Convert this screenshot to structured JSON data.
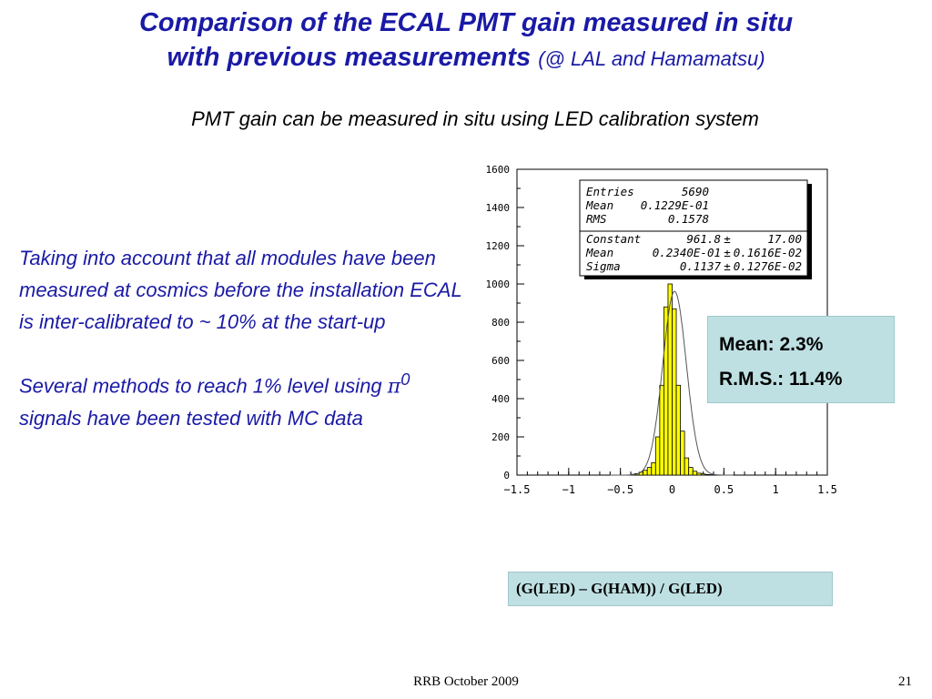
{
  "slide": {
    "title_line1": "Comparison of the ECAL PMT gain measured in situ",
    "title_line2": "with previous measurements",
    "title_suffix": "(@  LAL and Hamamatsu)",
    "subtitle": "PMT gain can be measured in situ using LED calibration system",
    "note1": "Taking into account that all modules have been measured at cosmics before the installation ECAL is inter-calibrated to ~ 10% at the start-up",
    "note2_before": "Several methods to reach 1% level using ",
    "note2_pi": "π",
    "note2_sup": "0",
    "note2_after": " signals have been tested with MC data",
    "callout_mean": "Mean: 2.3%",
    "callout_rms": "R.M.S.: 11.4%",
    "x_caption": "(G(LED) – G(HAM)) / G(LED)",
    "footer": "RRB October 2009",
    "page_number": "21"
  },
  "stats_box": [
    {
      "label": "Entries",
      "value": "5690"
    },
    {
      "label": "Mean",
      "value": "0.1229E-01"
    },
    {
      "label": "RMS",
      "value": "0.1578"
    },
    {
      "label": "Constant",
      "value": "961.8",
      "error": "17.00"
    },
    {
      "label": "Mean",
      "value": "0.2340E-01",
      "error": "0.1616E-02"
    },
    {
      "label": "Sigma",
      "value": "0.1137",
      "error": "0.1276E-02"
    }
  ],
  "colors": {
    "title_blue": "#1a1aa6",
    "histogram_fill": "#ffff00",
    "callout_bg": "#bfe0e3"
  },
  "chart_data": {
    "type": "bar",
    "xlim": [
      -1.5,
      1.5
    ],
    "ylim": [
      0,
      1600
    ],
    "xticks": [
      "-1.5",
      "-1",
      "-0.5",
      "0",
      "0.5",
      "1",
      "1.5"
    ],
    "yticks": [
      "0",
      "200",
      "400",
      "600",
      "800",
      "1000",
      "1200",
      "1400",
      "1600"
    ],
    "bin_width": 0.04,
    "bin_centers": [
      -0.38,
      -0.34,
      -0.3,
      -0.26,
      -0.22,
      -0.18,
      -0.14,
      -0.1,
      -0.06,
      -0.02,
      0.02,
      0.06,
      0.1,
      0.14,
      0.18,
      0.22,
      0.26,
      0.3,
      0.34,
      0.38
    ],
    "values": [
      4,
      8,
      15,
      25,
      40,
      65,
      200,
      470,
      880,
      1000,
      870,
      470,
      230,
      90,
      40,
      20,
      10,
      6,
      3,
      2
    ],
    "fit": {
      "constant": 961.8,
      "mean": 0.0234,
      "sigma": 0.1137
    },
    "grid": false
  }
}
